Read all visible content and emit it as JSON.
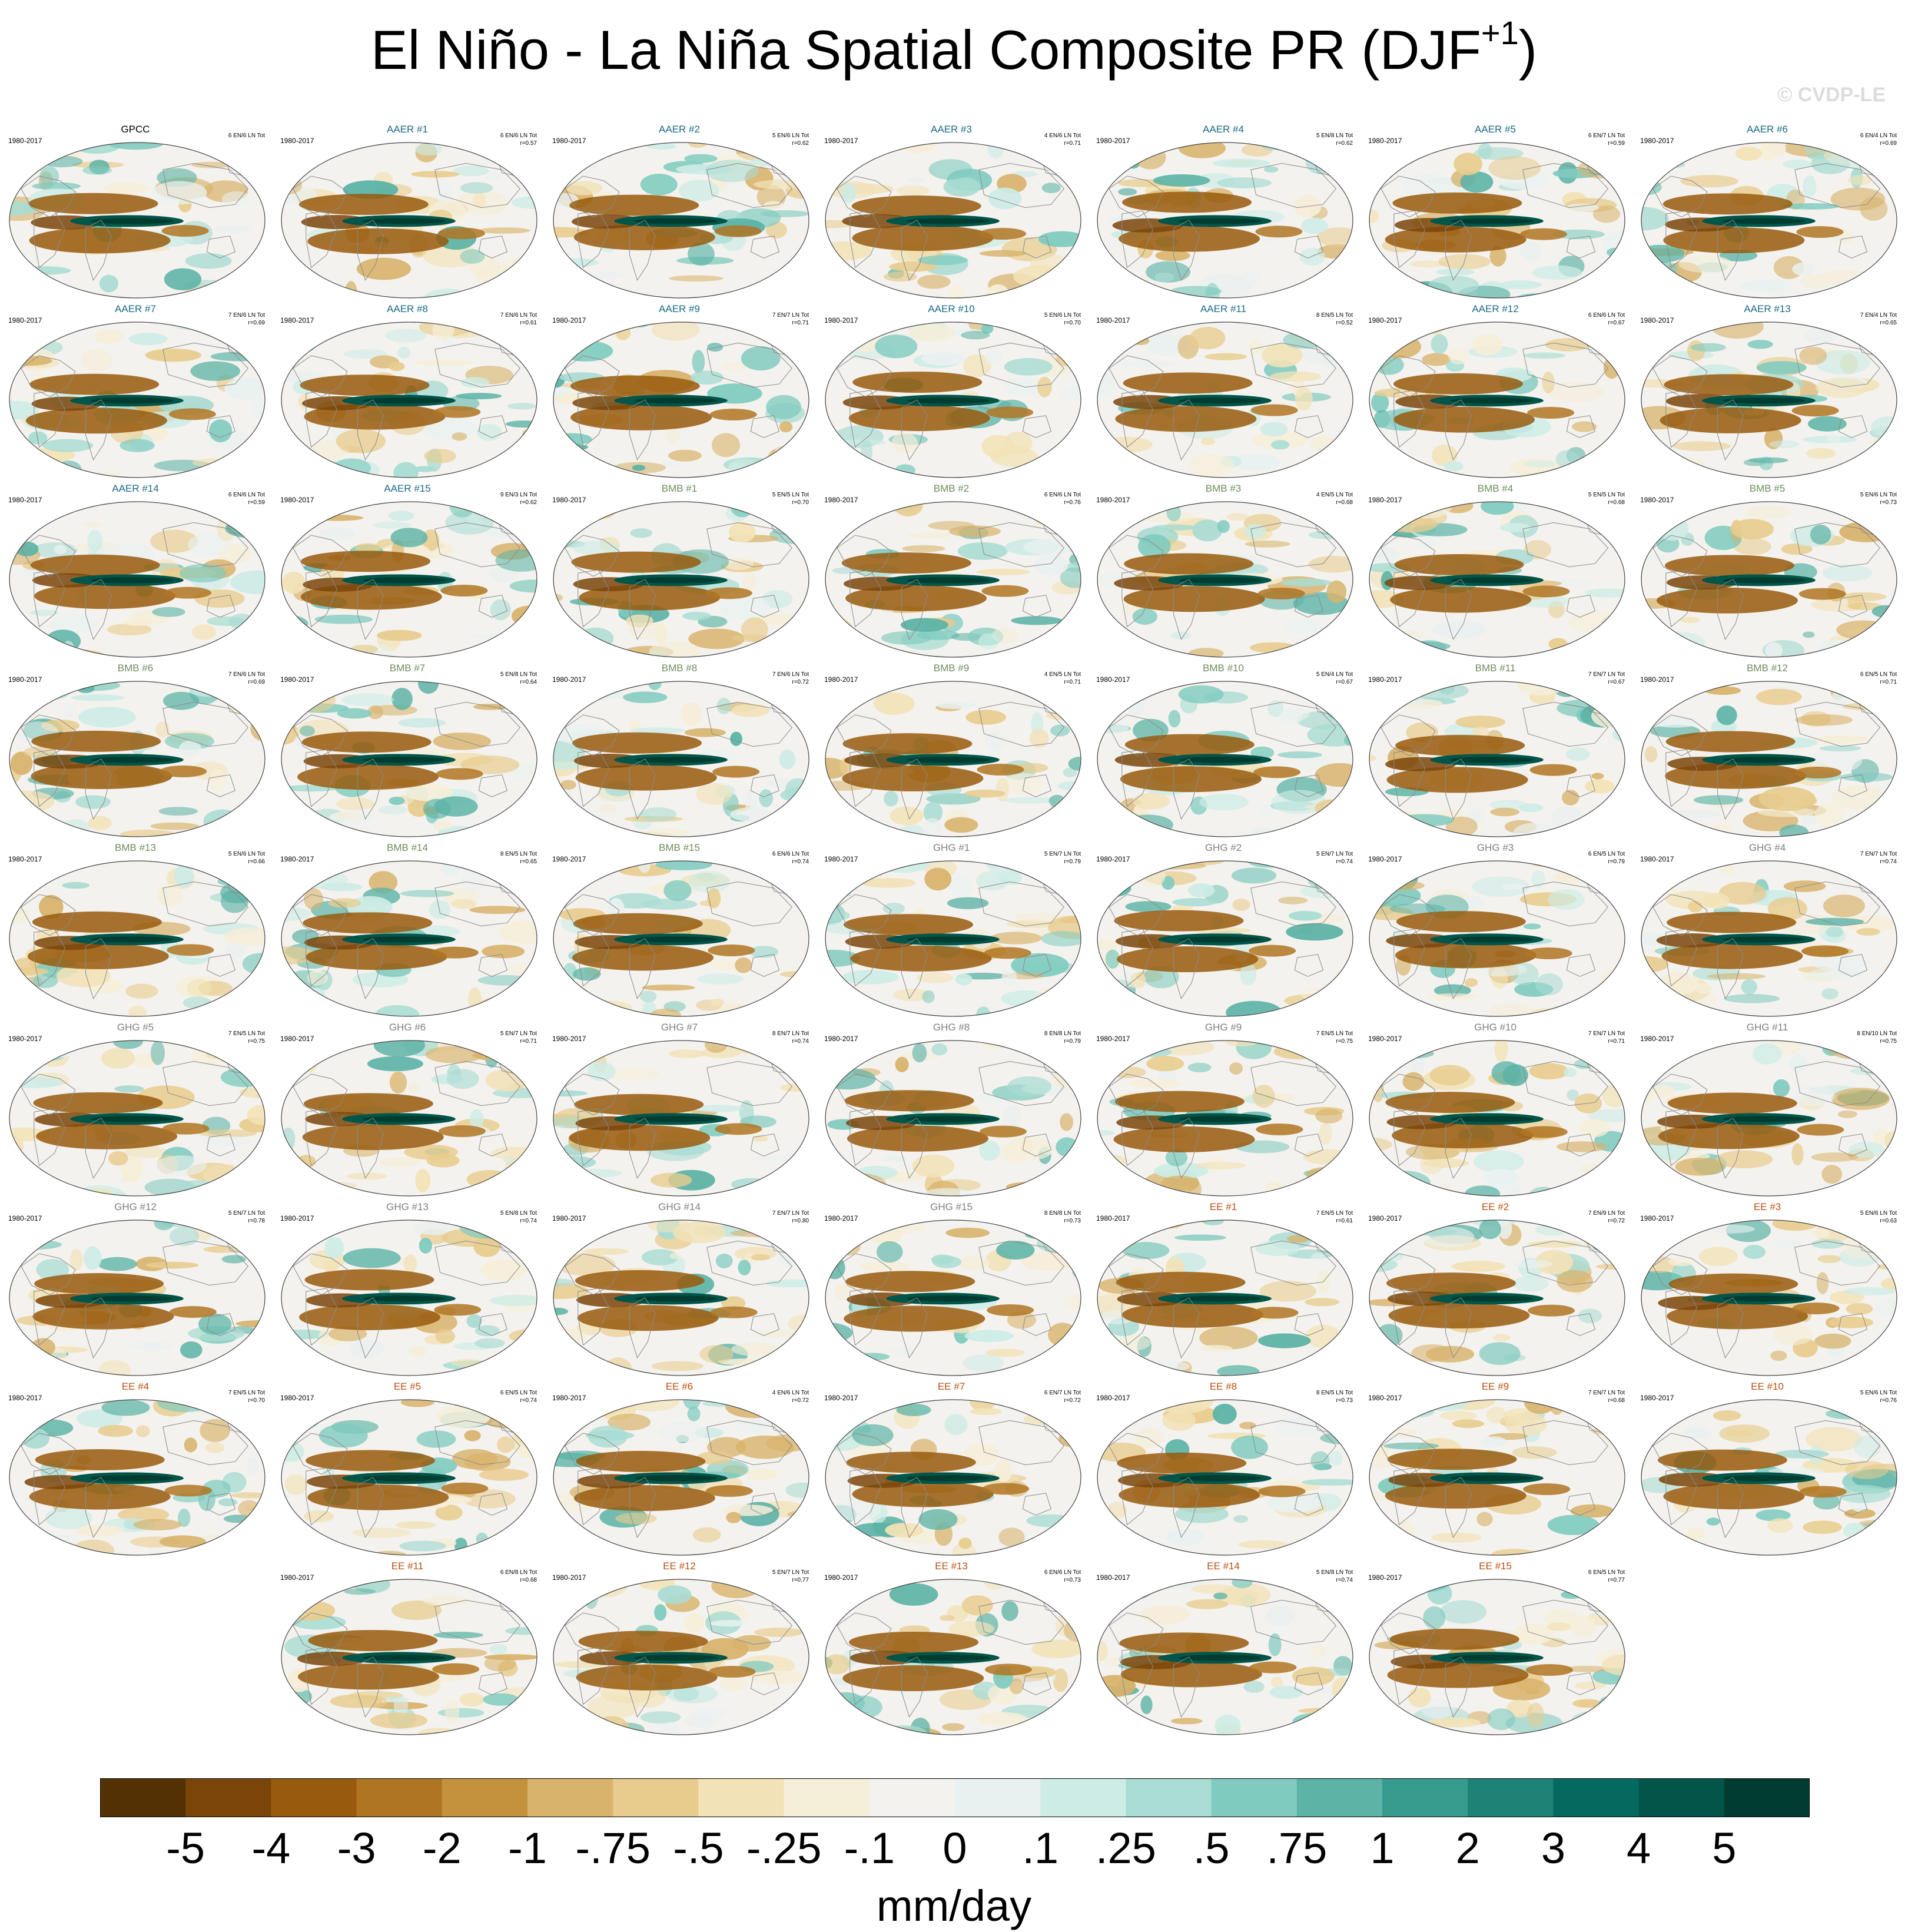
{
  "title": {
    "main": "El Niño - La Niña Spatial Composite PR (DJF",
    "sup": "+1",
    "close": ")"
  },
  "watermark": "© CVDP-LE",
  "units": "mm/day",
  "colors": {
    "AERER": "#1a6a86",
    "AER": "#1a6a86",
    "BMB": "#6e8c5c",
    "GHG": "#7f7f7f",
    "EE": "#b85010",
    "obs": "#000000",
    "land_outline": "#8a8a8a"
  },
  "chart_data": {
    "type": "heatmap",
    "projection": "robinson-global",
    "period": "1980-2017",
    "panels": [
      {
        "name": "GPCC",
        "group": "obs",
        "counts": "6 EN/6 LN Tot",
        "r": ""
      },
      {
        "name": "AAER #1",
        "group": "AER",
        "counts": "6 EN/6 LN Tot",
        "r": "r=0.57"
      },
      {
        "name": "AAER #2",
        "group": "AER",
        "counts": "5 EN/6 LN Tot",
        "r": "r=0.62"
      },
      {
        "name": "AAER #3",
        "group": "AER",
        "counts": "4 EN/6 LN Tot",
        "r": "r=0.71"
      },
      {
        "name": "AAER #4",
        "group": "AER",
        "counts": "5 EN/8 LN Tot",
        "r": "r=0.62"
      },
      {
        "name": "AAER #5",
        "group": "AER",
        "counts": "6 EN/7 LN Tot",
        "r": "r=0.59"
      },
      {
        "name": "AAER #6",
        "group": "AER",
        "counts": "6 EN/4 LN Tot",
        "r": "r=0.69"
      },
      {
        "name": "AAER #7",
        "group": "AER",
        "counts": "7 EN/6 LN Tot",
        "r": "r=0.69"
      },
      {
        "name": "AAER #8",
        "group": "AER",
        "counts": "7 EN/6 LN Tot",
        "r": "r=0.61"
      },
      {
        "name": "AAER #9",
        "group": "AER",
        "counts": "7 EN/7 LN Tot",
        "r": "r=0.71"
      },
      {
        "name": "AAER #10",
        "group": "AER",
        "counts": "5 EN/6 LN Tot",
        "r": "r=0.70"
      },
      {
        "name": "AAER #11",
        "group": "AER",
        "counts": "8 EN/5 LN Tot",
        "r": "r=0.52"
      },
      {
        "name": "AAER #12",
        "group": "AER",
        "counts": "6 EN/6 LN Tot",
        "r": "r=0.67"
      },
      {
        "name": "AAER #13",
        "group": "AER",
        "counts": "7 EN/4 LN Tot",
        "r": "r=0.65"
      },
      {
        "name": "AAER #14",
        "group": "AER",
        "counts": "6 EN/6 LN Tot",
        "r": "r=0.59"
      },
      {
        "name": "AAER #15",
        "group": "AER",
        "counts": "9 EN/3 LN Tot",
        "r": "r=0.62"
      },
      {
        "name": "BMB #1",
        "group": "BMB",
        "counts": "5 EN/5 LN Tot",
        "r": "r=0.70"
      },
      {
        "name": "BMB #2",
        "group": "BMB",
        "counts": "6 EN/6 LN Tot",
        "r": "r=0.76"
      },
      {
        "name": "BMB #3",
        "group": "BMB",
        "counts": "4 EN/5 LN Tot",
        "r": "r=0.68"
      },
      {
        "name": "BMB #4",
        "group": "BMB",
        "counts": "5 EN/5 LN Tot",
        "r": "r=0.68"
      },
      {
        "name": "BMB #5",
        "group": "BMB",
        "counts": "5 EN/6 LN Tot",
        "r": "r=0.73"
      },
      {
        "name": "BMB #6",
        "group": "BMB",
        "counts": "7 EN/6 LN Tot",
        "r": "r=0.69"
      },
      {
        "name": "BMB #7",
        "group": "BMB",
        "counts": "5 EN/8 LN Tot",
        "r": "r=0.64"
      },
      {
        "name": "BMB #8",
        "group": "BMB",
        "counts": "7 EN/6 LN Tot",
        "r": "r=0.72"
      },
      {
        "name": "BMB #9",
        "group": "BMB",
        "counts": "4 EN/5 LN Tot",
        "r": "r=0.71"
      },
      {
        "name": "BMB #10",
        "group": "BMB",
        "counts": "5 EN/4 LN Tot",
        "r": "r=0.67"
      },
      {
        "name": "BMB #11",
        "group": "BMB",
        "counts": "7 EN/7 LN Tot",
        "r": "r=0.67"
      },
      {
        "name": "BMB #12",
        "group": "BMB",
        "counts": "6 EN/5 LN Tot",
        "r": "r=0.71"
      },
      {
        "name": "BMB #13",
        "group": "BMB",
        "counts": "5 EN/6 LN Tot",
        "r": "r=0.66"
      },
      {
        "name": "BMB #14",
        "group": "BMB",
        "counts": "8 EN/5 LN Tot",
        "r": "r=0.65"
      },
      {
        "name": "BMB #15",
        "group": "BMB",
        "counts": "6 EN/6 LN Tot",
        "r": "r=0.74"
      },
      {
        "name": "GHG #1",
        "group": "GHG",
        "counts": "5 EN/7 LN Tot",
        "r": "r=0.79"
      },
      {
        "name": "GHG #2",
        "group": "GHG",
        "counts": "5 EN/7 LN Tot",
        "r": "r=0.74"
      },
      {
        "name": "GHG #3",
        "group": "GHG",
        "counts": "6 EN/5 LN Tot",
        "r": "r=0.79"
      },
      {
        "name": "GHG #4",
        "group": "GHG",
        "counts": "7 EN/7 LN Tot",
        "r": "r=0.74"
      },
      {
        "name": "GHG #5",
        "group": "GHG",
        "counts": "7 EN/5 LN Tot",
        "r": "r=0.75"
      },
      {
        "name": "GHG #6",
        "group": "GHG",
        "counts": "5 EN/7 LN Tot",
        "r": "r=0.71"
      },
      {
        "name": "GHG #7",
        "group": "GHG",
        "counts": "8 EN/7 LN Tot",
        "r": "r=0.74"
      },
      {
        "name": "GHG #8",
        "group": "GHG",
        "counts": "8 EN/8 LN Tot",
        "r": "r=0.79"
      },
      {
        "name": "GHG #9",
        "group": "GHG",
        "counts": "7 EN/5 LN Tot",
        "r": "r=0.75"
      },
      {
        "name": "GHG #10",
        "group": "GHG",
        "counts": "7 EN/7 LN Tot",
        "r": "r=0.71"
      },
      {
        "name": "GHG #11",
        "group": "GHG",
        "counts": "8 EN/10 LN Tot",
        "r": "r=0.75"
      },
      {
        "name": "GHG #12",
        "group": "GHG",
        "counts": "5 EN/7 LN Tot",
        "r": "r=0.78"
      },
      {
        "name": "GHG #13",
        "group": "GHG",
        "counts": "5 EN/8 LN Tot",
        "r": "r=0.74"
      },
      {
        "name": "GHG #14",
        "group": "GHG",
        "counts": "7 EN/7 LN Tot",
        "r": "r=0.80"
      },
      {
        "name": "GHG #15",
        "group": "GHG",
        "counts": "8 EN/8 LN Tot",
        "r": "r=0.73"
      },
      {
        "name": "EE #1",
        "group": "EE",
        "counts": "7 EN/5 LN Tot",
        "r": "r=0.61"
      },
      {
        "name": "EE #2",
        "group": "EE",
        "counts": "7 EN/9 LN Tot",
        "r": "r=0.72"
      },
      {
        "name": "EE #3",
        "group": "EE",
        "counts": "5 EN/6 LN Tot",
        "r": "r=0.63"
      },
      {
        "name": "EE #4",
        "group": "EE",
        "counts": "7 EN/5 LN Tot",
        "r": "r=0.70"
      },
      {
        "name": "EE #5",
        "group": "EE",
        "counts": "6 EN/5 LN Tot",
        "r": "r=0.74"
      },
      {
        "name": "EE #6",
        "group": "EE",
        "counts": "4 EN/6 LN Tot",
        "r": "r=0.72"
      },
      {
        "name": "EE #7",
        "group": "EE",
        "counts": "6 EN/7 LN Tot",
        "r": "r=0.72"
      },
      {
        "name": "EE #8",
        "group": "EE",
        "counts": "8 EN/5 LN Tot",
        "r": "r=0.73"
      },
      {
        "name": "EE #9",
        "group": "EE",
        "counts": "7 EN/7 LN Tot",
        "r": "r=0.68"
      },
      {
        "name": "EE #10",
        "group": "EE",
        "counts": "5 EN/6 LN Tot",
        "r": "r=0.76"
      },
      {
        "name": "EE #11",
        "group": "EE",
        "counts": "6 EN/8 LN Tot",
        "r": "r=0.68"
      },
      {
        "name": "EE #12",
        "group": "EE",
        "counts": "5 EN/7 LN Tot",
        "r": "r=0.77"
      },
      {
        "name": "EE #13",
        "group": "EE",
        "counts": "6 EN/6 LN Tot",
        "r": "r=0.73"
      },
      {
        "name": "EE #14",
        "group": "EE",
        "counts": "5 EN/8 LN Tot",
        "r": "r=0.74"
      },
      {
        "name": "EE #15",
        "group": "EE",
        "counts": "6 EN/5 LN Tot",
        "r": "r=0.77"
      }
    ],
    "colorbar": {
      "labels": [
        "-5",
        "-4",
        "-3",
        "-2",
        "-1",
        "-.75",
        "-.5",
        "-.25",
        "-.1",
        "0",
        ".1",
        ".25",
        ".5",
        ".75",
        "1",
        "2",
        "3",
        "4",
        "5"
      ],
      "colors": [
        "#543005",
        "#7a4509",
        "#985a0d",
        "#b07523",
        "#c4913d",
        "#d8b36c",
        "#e8cc8e",
        "#f2e2b7",
        "#f5eed8",
        "#f4f2ee",
        "#e9f1f0",
        "#cdece6",
        "#a9dcd3",
        "#80cbbf",
        "#5cb3a6",
        "#369a8d",
        "#1e8277",
        "#046a5f",
        "#025549",
        "#003c2f"
      ]
    }
  }
}
